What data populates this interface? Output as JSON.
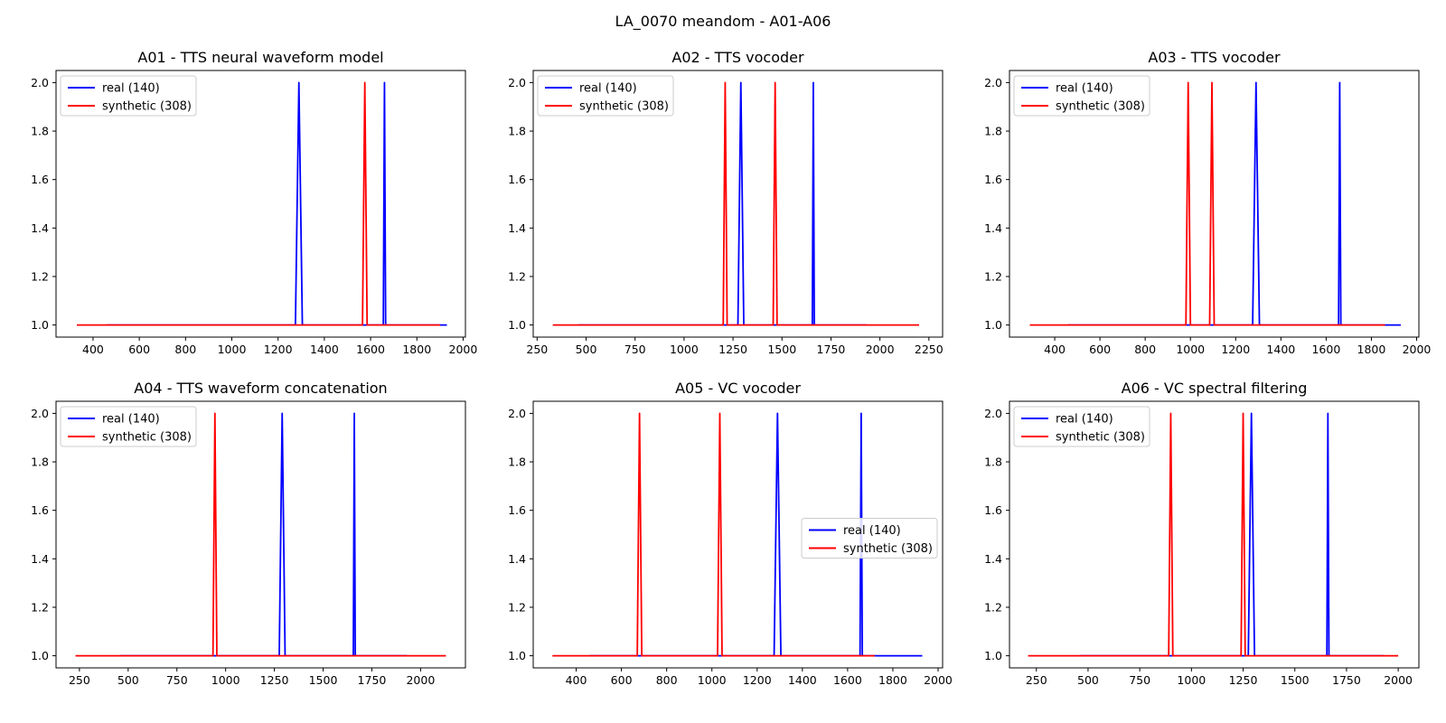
{
  "figure_title": "LA_0070 meandom - A01-A06",
  "colors": {
    "real": "#0000ff",
    "synthetic": "#ff0000"
  },
  "chart_data": [
    {
      "type": "line",
      "title": "A01 - TTS neural waveform model",
      "xlim": [
        240,
        2010
      ],
      "ylim": [
        0.95,
        2.05
      ],
      "x_ticks": [
        400,
        600,
        800,
        1000,
        1200,
        1400,
        1600,
        1800,
        2000
      ],
      "y_ticks": [
        1.0,
        1.2,
        1.4,
        1.6,
        1.8,
        2.0
      ],
      "legend_position": "upper-left",
      "series": [
        {
          "name": "real (140)",
          "color": "#0000ff",
          "points": [
            [
              460,
              1
            ],
            [
              1275,
              1
            ],
            [
              1290,
              2
            ],
            [
              1305,
              1
            ],
            [
              1655,
              1
            ],
            [
              1660,
              2
            ],
            [
              1665,
              1
            ],
            [
              1930,
              1
            ]
          ]
        },
        {
          "name": "synthetic (308)",
          "color": "#ff0000",
          "points": [
            [
              330,
              1
            ],
            [
              1565,
              1
            ],
            [
              1575,
              2
            ],
            [
              1585,
              1
            ],
            [
              1900,
              1
            ]
          ]
        }
      ]
    },
    {
      "type": "line",
      "title": "A02 - TTS vocoder",
      "xlim": [
        230,
        2320
      ],
      "ylim": [
        0.95,
        2.05
      ],
      "x_ticks": [
        250,
        500,
        750,
        1000,
        1250,
        1500,
        1750,
        2000,
        2250
      ],
      "y_ticks": [
        1.0,
        1.2,
        1.4,
        1.6,
        1.8,
        2.0
      ],
      "legend_position": "upper-left",
      "series": [
        {
          "name": "real (140)",
          "color": "#0000ff",
          "points": [
            [
              460,
              1
            ],
            [
              1275,
              1
            ],
            [
              1290,
              2
            ],
            [
              1305,
              1
            ],
            [
              1655,
              1
            ],
            [
              1660,
              2
            ],
            [
              1665,
              1
            ],
            [
              1930,
              1
            ]
          ]
        },
        {
          "name": "synthetic (308)",
          "color": "#ff0000",
          "points": [
            [
              330,
              1
            ],
            [
              1200,
              1
            ],
            [
              1210,
              2
            ],
            [
              1220,
              1
            ],
            [
              1455,
              1
            ],
            [
              1465,
              2
            ],
            [
              1475,
              1
            ],
            [
              2200,
              1
            ]
          ]
        }
      ]
    },
    {
      "type": "line",
      "title": "A03 - TTS vocoder",
      "xlim": [
        200,
        2010
      ],
      "ylim": [
        0.95,
        2.05
      ],
      "x_ticks": [
        400,
        600,
        800,
        1000,
        1200,
        1400,
        1600,
        1800,
        2000
      ],
      "y_ticks": [
        1.0,
        1.2,
        1.4,
        1.6,
        1.8,
        2.0
      ],
      "legend_position": "upper-left",
      "series": [
        {
          "name": "real (140)",
          "color": "#0000ff",
          "points": [
            [
              460,
              1
            ],
            [
              1275,
              1
            ],
            [
              1290,
              2
            ],
            [
              1305,
              1
            ],
            [
              1655,
              1
            ],
            [
              1660,
              2
            ],
            [
              1665,
              1
            ],
            [
              1930,
              1
            ]
          ]
        },
        {
          "name": "synthetic (308)",
          "color": "#ff0000",
          "points": [
            [
              290,
              1
            ],
            [
              980,
              1
            ],
            [
              990,
              2
            ],
            [
              1000,
              1
            ],
            [
              1085,
              1
            ],
            [
              1095,
              2
            ],
            [
              1105,
              1
            ],
            [
              1860,
              1
            ]
          ]
        }
      ]
    },
    {
      "type": "line",
      "title": "A04 - TTS waveform concatenation",
      "xlim": [
        130,
        2230
      ],
      "ylim": [
        0.95,
        2.05
      ],
      "x_ticks": [
        250,
        500,
        750,
        1000,
        1250,
        1500,
        1750,
        2000
      ],
      "y_ticks": [
        1.0,
        1.2,
        1.4,
        1.6,
        1.8,
        2.0
      ],
      "legend_position": "upper-left",
      "series": [
        {
          "name": "real (140)",
          "color": "#0000ff",
          "points": [
            [
              460,
              1
            ],
            [
              1275,
              1
            ],
            [
              1290,
              2
            ],
            [
              1305,
              1
            ],
            [
              1655,
              1
            ],
            [
              1660,
              2
            ],
            [
              1665,
              1
            ],
            [
              1930,
              1
            ]
          ]
        },
        {
          "name": "synthetic (308)",
          "color": "#ff0000",
          "points": [
            [
              230,
              1
            ],
            [
              935,
              1
            ],
            [
              945,
              2
            ],
            [
              955,
              1
            ],
            [
              2130,
              1
            ]
          ]
        }
      ]
    },
    {
      "type": "line",
      "title": "A05 - VC vocoder",
      "xlim": [
        210,
        2020
      ],
      "ylim": [
        0.95,
        2.05
      ],
      "x_ticks": [
        400,
        600,
        800,
        1000,
        1200,
        1400,
        1600,
        1800,
        2000
      ],
      "y_ticks": [
        1.0,
        1.2,
        1.4,
        1.6,
        1.8,
        2.0
      ],
      "legend_position": "center-right",
      "series": [
        {
          "name": "real (140)",
          "color": "#0000ff",
          "points": [
            [
              460,
              1
            ],
            [
              1275,
              1
            ],
            [
              1290,
              2
            ],
            [
              1305,
              1
            ],
            [
              1655,
              1
            ],
            [
              1660,
              2
            ],
            [
              1665,
              1
            ],
            [
              1930,
              1
            ]
          ]
        },
        {
          "name": "synthetic (308)",
          "color": "#ff0000",
          "points": [
            [
              295,
              1
            ],
            [
              670,
              1
            ],
            [
              680,
              2
            ],
            [
              690,
              1
            ],
            [
              1025,
              1
            ],
            [
              1035,
              2
            ],
            [
              1045,
              1
            ],
            [
              1720,
              1
            ]
          ]
        }
      ]
    },
    {
      "type": "line",
      "title": "A06 - VC spectral filtering",
      "xlim": [
        120,
        2100
      ],
      "ylim": [
        0.95,
        2.05
      ],
      "x_ticks": [
        250,
        500,
        750,
        1000,
        1250,
        1500,
        1750,
        2000
      ],
      "y_ticks": [
        1.0,
        1.2,
        1.4,
        1.6,
        1.8,
        2.0
      ],
      "legend_position": "upper-left",
      "series": [
        {
          "name": "real (140)",
          "color": "#0000ff",
          "points": [
            [
              460,
              1
            ],
            [
              1275,
              1
            ],
            [
              1290,
              2
            ],
            [
              1305,
              1
            ],
            [
              1655,
              1
            ],
            [
              1660,
              2
            ],
            [
              1665,
              1
            ],
            [
              1930,
              1
            ]
          ]
        },
        {
          "name": "synthetic (308)",
          "color": "#ff0000",
          "points": [
            [
              210,
              1
            ],
            [
              890,
              1
            ],
            [
              900,
              2
            ],
            [
              910,
              1
            ],
            [
              1240,
              1
            ],
            [
              1250,
              2
            ],
            [
              1260,
              1
            ],
            [
              2000,
              1
            ]
          ]
        }
      ]
    }
  ]
}
